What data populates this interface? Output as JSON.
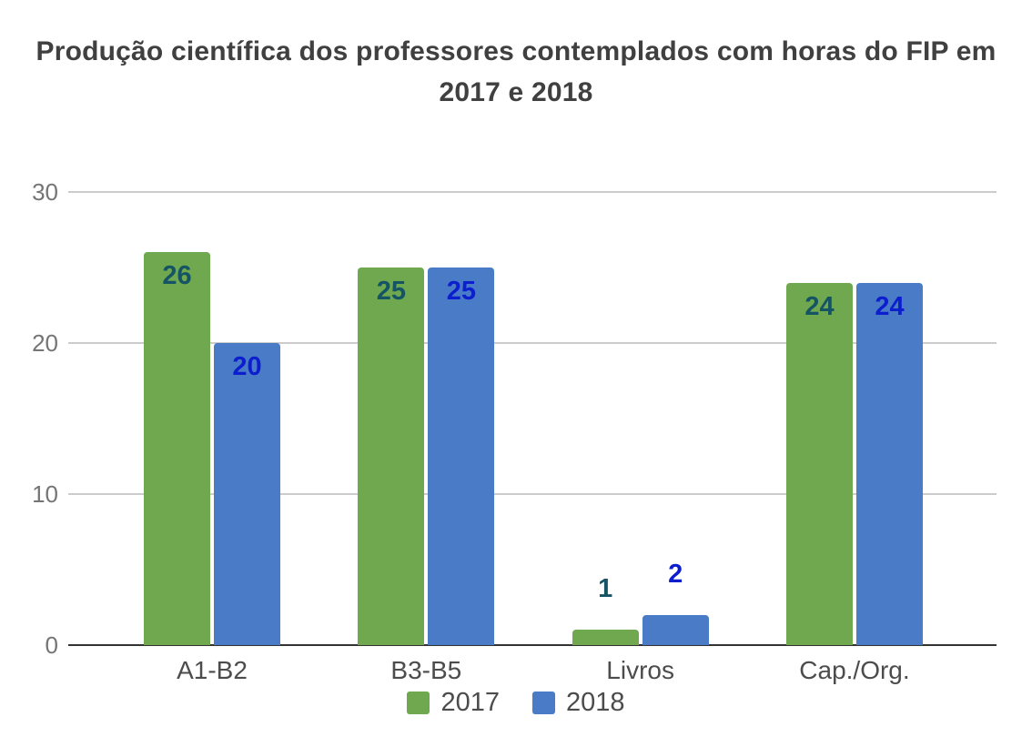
{
  "chart_data": {
    "type": "bar",
    "title": "Produção científica dos professores contemplados com horas do FIP em 2017 e 2018",
    "title_lines": [
      "Produção científica dos professores contemplados com horas do FIP em",
      "2017 e 2018"
    ],
    "categories": [
      "A1-B2",
      "B3-B5",
      "Livros",
      "Cap./Org."
    ],
    "series": [
      {
        "name": "2017",
        "values": [
          26,
          25,
          1,
          24
        ],
        "color": "#6fa84e",
        "label_color": "#155464"
      },
      {
        "name": "2018",
        "values": [
          20,
          25,
          2,
          24
        ],
        "color": "#4a7bc7",
        "label_color": "#0d1ecf"
      }
    ],
    "ylim": [
      0,
      30
    ],
    "yticks": [
      0,
      10,
      20,
      30
    ],
    "grid": true,
    "legend_position": "bottom",
    "colors": {
      "title": "#404040",
      "axis_label": "#757575",
      "category_label": "#4c4c4c",
      "legend_label": "#4c4c4c",
      "gridline": "#cccccc",
      "axis_line": "#333333"
    }
  }
}
